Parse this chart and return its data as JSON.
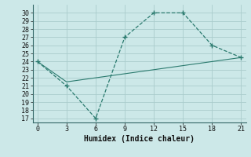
{
  "line1_x": [
    0,
    3,
    6,
    9,
    12,
    15,
    18,
    21
  ],
  "line1_y": [
    24,
    21,
    17,
    27,
    30,
    30,
    26,
    24.5
  ],
  "line2_x": [
    0,
    3,
    6,
    9,
    12,
    15,
    18,
    21
  ],
  "line2_y": [
    24,
    21.5,
    22,
    22.5,
    23,
    23.5,
    24,
    24.5
  ],
  "line_color": "#2a7a6e",
  "bg_color": "#cce8e8",
  "grid_color": "#aacccc",
  "xlabel": "Humidex (Indice chaleur)",
  "xlim": [
    -0.5,
    21.5
  ],
  "ylim": [
    16.5,
    31
  ],
  "xticks": [
    0,
    3,
    6,
    9,
    12,
    15,
    18,
    21
  ],
  "yticks": [
    17,
    18,
    19,
    20,
    21,
    22,
    23,
    24,
    25,
    26,
    27,
    28,
    29,
    30
  ],
  "tick_fontsize": 6.0,
  "xlabel_fontsize": 7.0
}
